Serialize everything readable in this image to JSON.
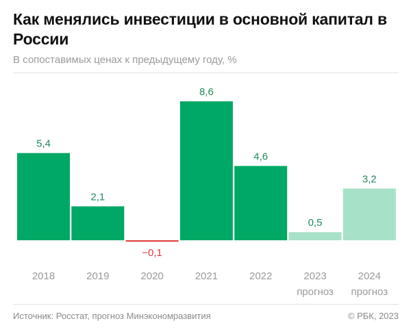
{
  "header": {
    "title": "Как менялись инвестиции в основной капитал в России",
    "subtitle": "В сопоставимых ценах к предыдущему году, %"
  },
  "footer": {
    "source": "Источник: Росстат, прогноз Минэкономразвития",
    "copyright": "© РБК, 2023"
  },
  "colors": {
    "actual": "#00a865",
    "forecast": "#a7e1c8",
    "negative": "#e03a3a",
    "positive_label": "#1f8a5b",
    "negative_label": "#e03a3a"
  },
  "chart_data": {
    "type": "bar",
    "title": "Как менялись инвестиции в основной капитал в России",
    "subtitle": "В сопоставимых ценах к предыдущему году, %",
    "xlabel": "",
    "ylabel": "",
    "categories": [
      "2018",
      "2019",
      "2020",
      "2021",
      "2022",
      "2023",
      "2024"
    ],
    "category_sublabels": [
      "",
      "",
      "",
      "",
      "",
      "прогноз",
      "прогноз"
    ],
    "values": [
      5.4,
      2.1,
      -0.1,
      8.6,
      4.6,
      0.5,
      3.2
    ],
    "value_labels": [
      "5,4",
      "2,1",
      "−0,1",
      "8,6",
      "4,6",
      "0,5",
      "3,2"
    ],
    "forecast": [
      false,
      false,
      false,
      false,
      false,
      true,
      true
    ],
    "ylim": [
      -0.1,
      8.6
    ],
    "grid": false,
    "legend": "none"
  }
}
